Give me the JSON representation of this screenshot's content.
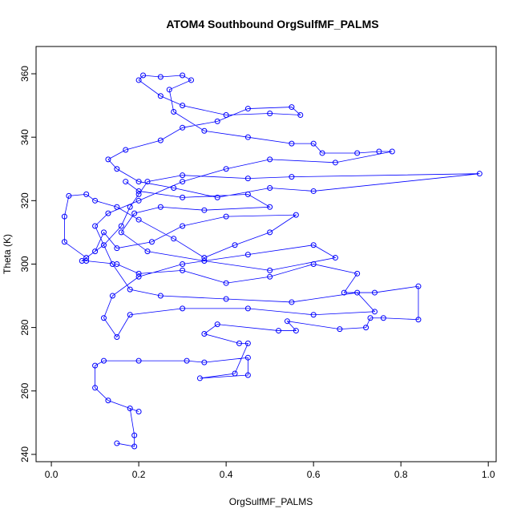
{
  "chart_data": {
    "type": "line",
    "title": "ATOM4 Southbound OrgSulfMF_PALMS",
    "xlabel": "OrgSulfMF_PALMS",
    "ylabel": "Theta (K)",
    "color": "#0000ff",
    "marker": "open-circle",
    "x": [
      0.15,
      0.19,
      0.19,
      0.18,
      0.2,
      0.13,
      0.1,
      0.1,
      0.12,
      0.2,
      0.31,
      0.35,
      0.45,
      0.45,
      0.34,
      0.42,
      0.45,
      0.43,
      0.35,
      0.38,
      0.52,
      0.56,
      0.54,
      0.66,
      0.72,
      0.73,
      0.76,
      0.84,
      0.84,
      0.74,
      0.67,
      0.7,
      0.6,
      0.5,
      0.4,
      0.3,
      0.2,
      0.15,
      0.08,
      0.07,
      0.1,
      0.12,
      0.15,
      0.23,
      0.3,
      0.4,
      0.56,
      0.5,
      0.42,
      0.35,
      0.28,
      0.2,
      0.15,
      0.1,
      0.08,
      0.04,
      0.03,
      0.03,
      0.08,
      0.12,
      0.16,
      0.18,
      0.2,
      0.22,
      0.3,
      0.45,
      0.55,
      0.98,
      0.6,
      0.5,
      0.38,
      0.28,
      0.2,
      0.15,
      0.13,
      0.17,
      0.25,
      0.3,
      0.38,
      0.45,
      0.55,
      0.57,
      0.5,
      0.4,
      0.3,
      0.25,
      0.2,
      0.21,
      0.25,
      0.3,
      0.32,
      0.27,
      0.28,
      0.35,
      0.45,
      0.55,
      0.6,
      0.62,
      0.7,
      0.75,
      0.78,
      0.65,
      0.5,
      0.4,
      0.3,
      0.2,
      0.13,
      0.1,
      0.14,
      0.18,
      0.25,
      0.4,
      0.55,
      0.7,
      0.74,
      0.6,
      0.45,
      0.3,
      0.18,
      0.15,
      0.12,
      0.14,
      0.2,
      0.3,
      0.45,
      0.6,
      0.65,
      0.5,
      0.35,
      0.22,
      0.16,
      0.19,
      0.25,
      0.35,
      0.5,
      0.45,
      0.3,
      0.2,
      0.17
    ],
    "values": [
      243.5,
      242.5,
      246,
      254.5,
      253.5,
      257,
      261,
      268,
      269.5,
      269.5,
      269.5,
      269,
      270.5,
      265,
      264,
      265.5,
      275,
      275,
      278,
      281,
      279,
      279,
      282,
      279.5,
      280,
      283,
      283,
      282.5,
      293,
      291,
      291,
      297,
      300,
      296,
      294,
      298,
      297,
      300,
      301,
      301,
      304,
      310,
      305,
      307,
      312,
      315,
      315.5,
      310,
      306,
      302,
      308,
      314,
      318,
      320,
      322,
      321.5,
      315,
      307,
      302,
      306,
      312,
      318,
      322,
      326,
      328,
      327,
      327.5,
      328.5,
      323,
      324,
      321,
      324,
      326,
      330,
      333,
      336,
      339,
      343,
      345,
      349,
      349.5,
      347,
      347.5,
      347,
      350,
      353,
      358,
      359.5,
      359,
      359.5,
      358,
      355,
      348,
      342,
      340,
      338,
      338,
      335,
      335,
      335.5,
      335.5,
      332,
      333,
      330,
      326,
      320,
      316,
      312,
      300,
      292,
      290,
      289,
      288,
      291,
      285,
      284,
      286,
      286,
      284,
      277,
      283,
      290,
      296,
      300,
      303,
      306,
      302,
      298,
      301,
      304,
      310,
      316,
      318,
      317,
      318,
      322,
      321,
      323,
      326
    ],
    "xlim": [
      -0.035,
      1.018
    ],
    "ylim": [
      237.7,
      368.6
    ],
    "xticks": [
      {
        "value": 0,
        "label": "0.0"
      },
      0.2,
      0.4,
      0.6,
      0.8,
      {
        "value": 1,
        "label": "1.0"
      }
    ],
    "yticks": [
      240,
      260,
      280,
      300,
      320,
      340,
      360
    ]
  }
}
